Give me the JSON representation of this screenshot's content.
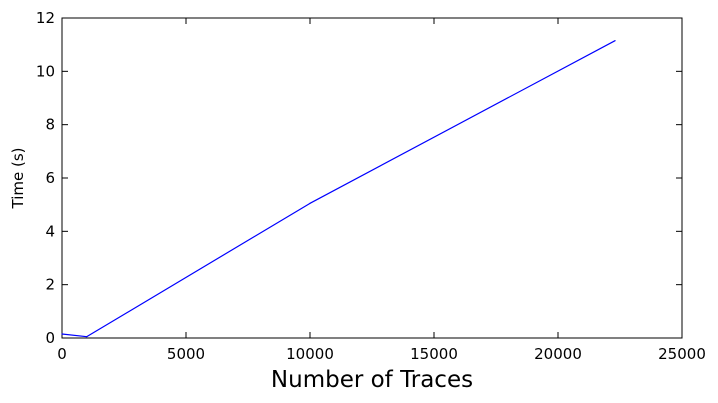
{
  "chart_data": {
    "type": "line",
    "title": "",
    "xlabel": "Number of Traces",
    "ylabel": "Time (s)",
    "xlim": [
      0,
      25000
    ],
    "ylim": [
      0,
      12
    ],
    "xticks": [
      0,
      5000,
      10000,
      15000,
      20000,
      25000
    ],
    "yticks": [
      0,
      2,
      4,
      6,
      8,
      10,
      12
    ],
    "xtick_labels": [
      "0",
      "5000",
      "10000",
      "15000",
      "20000",
      "25000"
    ],
    "ytick_labels": [
      "0",
      "2",
      "4",
      "6",
      "8",
      "10",
      "12"
    ],
    "grid": false,
    "legend": "none",
    "colors": {
      "line": "#0000ff",
      "axes": "#000000",
      "background": "#ffffff"
    },
    "series": [
      {
        "x": [
          0,
          1000,
          10000,
          22300
        ],
        "y": [
          0.15,
          0.05,
          5.05,
          11.15
        ]
      }
    ]
  }
}
